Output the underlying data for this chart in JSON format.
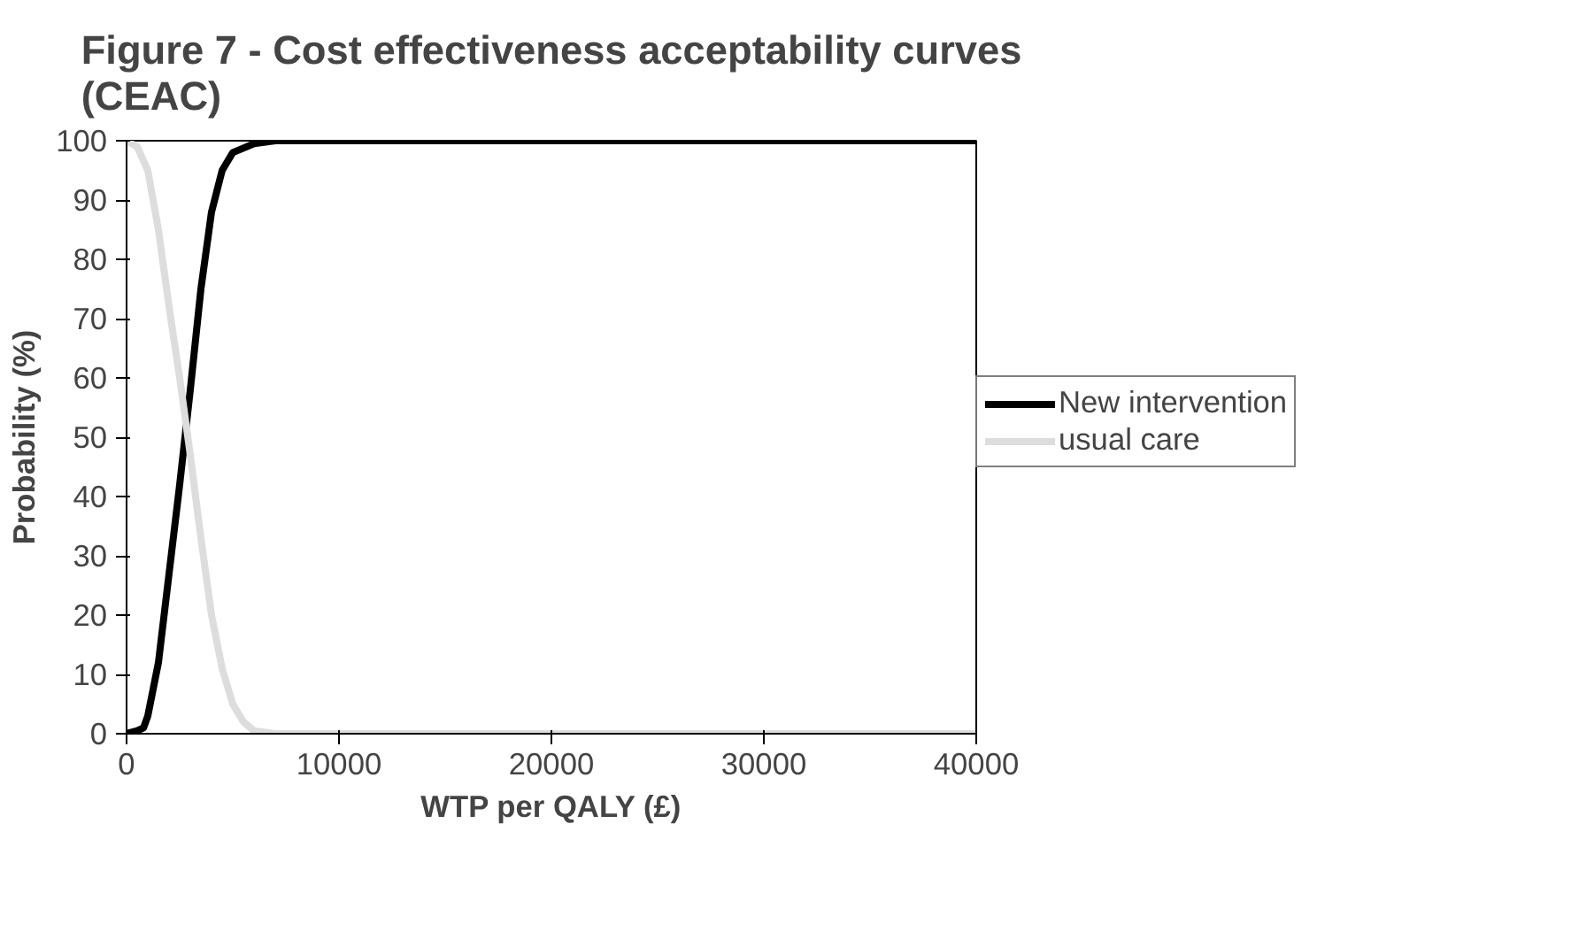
{
  "chart_data": {
    "type": "line",
    "title": "Figure 7 - Cost effectiveness acceptability curves (CEAC)",
    "xlabel": "WTP per QALY (£)",
    "ylabel": "Probability (%)",
    "xlim": [
      0,
      40000
    ],
    "ylim": [
      0,
      100
    ],
    "xticks": [
      0,
      10000,
      20000,
      30000,
      40000
    ],
    "yticks": [
      0,
      10,
      20,
      30,
      40,
      50,
      60,
      70,
      80,
      90,
      100
    ],
    "grid": false,
    "legend": "right",
    "marker": "none",
    "line_style": "solid",
    "series": [
      {
        "name": "New intervention",
        "color": "#000000",
        "x": [
          0,
          500,
          800,
          1000,
          1500,
          2000,
          2500,
          3000,
          3500,
          4000,
          4500,
          5000,
          6000,
          7000,
          40000
        ],
        "values": [
          0,
          0.5,
          1,
          3,
          12,
          27,
          42,
          58,
          75,
          88,
          95,
          98,
          99.5,
          100,
          100
        ]
      },
      {
        "name": "usual care",
        "color": "#dddddd",
        "x": [
          0,
          500,
          1000,
          1500,
          2000,
          2500,
          3000,
          3500,
          4000,
          4500,
          5000,
          5500,
          6000,
          7000,
          40000
        ],
        "values": [
          100,
          99,
          95,
          85,
          72,
          60,
          47,
          33,
          20,
          11,
          5,
          2,
          0.5,
          0,
          0
        ]
      }
    ]
  }
}
